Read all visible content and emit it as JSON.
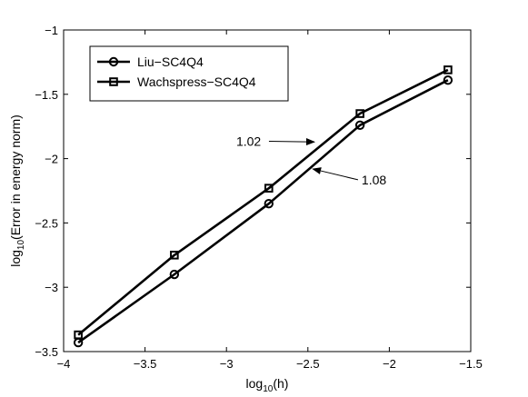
{
  "chart_data": {
    "type": "line",
    "title": "",
    "xlabel": {
      "prefix": "log",
      "sub": "10",
      "suffix": "(h)"
    },
    "ylabel": {
      "prefix": "log",
      "sub": "10",
      "suffix": "(Error in energy norm)"
    },
    "xlim": [
      -4,
      -1.5
    ],
    "ylim": [
      -3.5,
      -1
    ],
    "xticks": [
      -4,
      -3.5,
      -3,
      -2.5,
      -2,
      -1.5
    ],
    "yticks": [
      -3.5,
      -3,
      -2.5,
      -2,
      -1.5,
      -1
    ],
    "xtick_labels": [
      "−4",
      "−3.5",
      "−3",
      "−2.5",
      "−2",
      "−1.5"
    ],
    "ytick_labels": [
      "−3.5",
      "−3",
      "−2.5",
      "−2",
      "−1.5",
      "−1"
    ],
    "grid": false,
    "legend_position": "top-left",
    "series": [
      {
        "name": "Liu−SC4Q4",
        "marker": "circle",
        "x": [
          -3.91,
          -3.32,
          -2.74,
          -2.18,
          -1.64
        ],
        "y": [
          -3.43,
          -2.9,
          -2.35,
          -1.74,
          -1.39
        ]
      },
      {
        "name": "Wachspress−SC4Q4",
        "marker": "square",
        "x": [
          -3.91,
          -3.32,
          -2.74,
          -2.18,
          -1.64
        ],
        "y": [
          -3.37,
          -2.75,
          -2.23,
          -1.65,
          -1.31
        ]
      }
    ],
    "annotations": [
      {
        "text": "1.02",
        "text_x": -2.94,
        "text_y": -1.9,
        "arrow_to_x": -2.46,
        "arrow_to_y": -1.87
      },
      {
        "text": "1.08",
        "text_x": -2.17,
        "text_y": -2.2,
        "arrow_to_x": -2.47,
        "arrow_to_y": -2.08
      }
    ]
  }
}
